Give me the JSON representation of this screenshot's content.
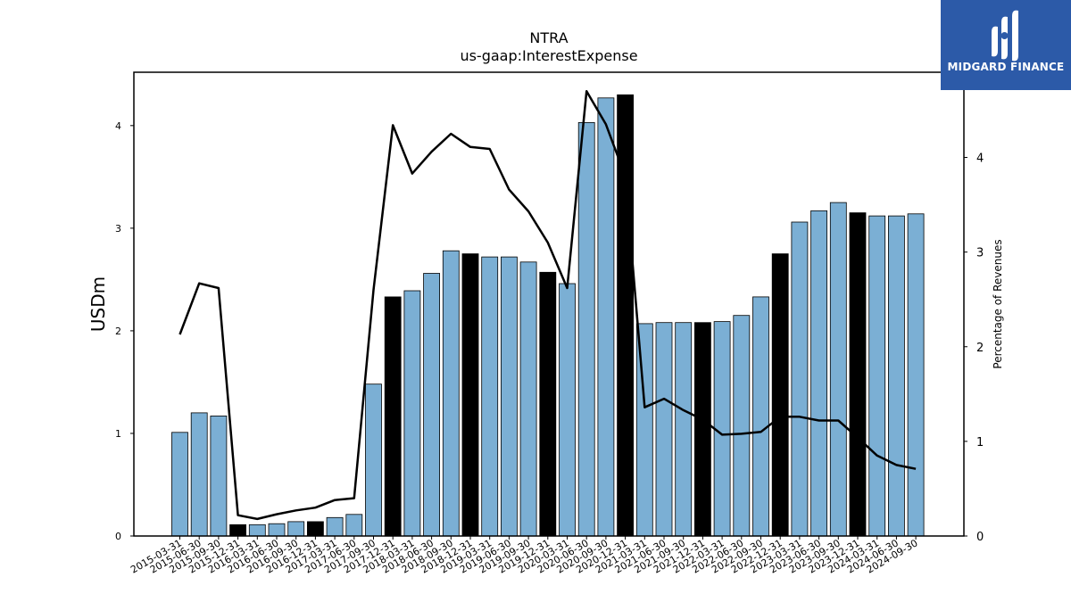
{
  "chart_data": {
    "type": "bar",
    "title": "NTRA",
    "subtitle": "us-gaap:InterestExpense",
    "ylabel": "USDm",
    "ylabel_right": "Percentage of Revenues",
    "ylim": [
      0,
      4.52
    ],
    "ylim_right": [
      0,
      4.9
    ],
    "yticks": [
      0,
      1,
      2,
      3,
      4
    ],
    "yticks_right": [
      0,
      1,
      2,
      3,
      4
    ],
    "grid": false,
    "categories": [
      "2015-03-31",
      "2015-06-30",
      "2015-09-30",
      "2015-12-31",
      "2016-03-31",
      "2016-06-30",
      "2016-09-30",
      "2016-12-31",
      "2017-03-31",
      "2017-06-30",
      "2017-09-30",
      "2017-12-31",
      "2018-03-31",
      "2018-06-30",
      "2018-09-30",
      "2018-12-31",
      "2019-03-31",
      "2019-06-30",
      "2019-09-30",
      "2019-12-31",
      "2020-03-31",
      "2020-06-30",
      "2020-09-30",
      "2020-12-31",
      "2021-03-31",
      "2021-06-30",
      "2021-09-30",
      "2021-12-31",
      "2022-03-31",
      "2022-06-30",
      "2022-09-30",
      "2022-12-31",
      "2023-03-31",
      "2023-06-30",
      "2023-09-30",
      "2023-12-31",
      "2024-03-31",
      "2024-06-30",
      "2024-09-30"
    ],
    "series": [
      {
        "kind": "bar",
        "values": [
          1.01,
          1.2,
          1.17,
          0.11,
          0.11,
          0.12,
          0.14,
          0.14,
          0.18,
          0.21,
          1.48,
          2.33,
          2.39,
          2.56,
          2.78,
          2.75,
          2.72,
          2.72,
          2.67,
          2.57,
          2.46,
          4.03,
          4.27,
          4.3,
          2.07,
          2.08,
          2.08,
          2.08,
          2.09,
          2.15,
          2.33,
          2.75,
          3.06,
          3.17,
          3.25,
          3.15,
          3.12,
          3.12,
          3.14
        ],
        "highlight": [
          false,
          false,
          false,
          true,
          false,
          false,
          false,
          true,
          false,
          false,
          false,
          true,
          false,
          false,
          false,
          true,
          false,
          false,
          false,
          true,
          false,
          false,
          false,
          true,
          false,
          false,
          false,
          true,
          false,
          false,
          false,
          true,
          false,
          false,
          false,
          true,
          false,
          false,
          false
        ]
      },
      {
        "kind": "line",
        "axis": "right",
        "values": [
          2.13,
          2.67,
          2.62,
          0.22,
          0.18,
          0.23,
          0.27,
          0.3,
          0.38,
          0.4,
          2.6,
          4.34,
          3.83,
          4.06,
          4.25,
          4.11,
          4.09,
          3.66,
          3.43,
          3.1,
          2.62,
          4.7,
          4.35,
          3.8,
          1.36,
          1.45,
          1.33,
          1.23,
          1.07,
          1.08,
          1.1,
          1.26,
          1.26,
          1.22,
          1.22,
          1.04,
          0.85,
          0.75,
          0.71
        ]
      }
    ],
    "colors": {
      "bar": "#7bafd4",
      "bar_highlight": "#000000",
      "line": "#000000"
    }
  },
  "logo": {
    "text": "MIDGARD FINANCE",
    "bg": "#2c5aa8"
  }
}
